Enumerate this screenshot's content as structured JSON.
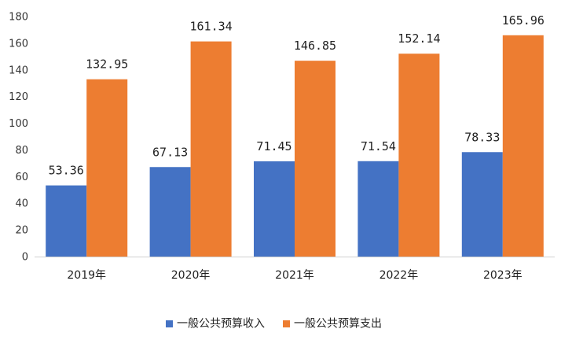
{
  "chart_data": {
    "type": "bar",
    "title": "",
    "xlabel": "",
    "ylabel": "",
    "categories": [
      "2019年",
      "2020年",
      "2021年",
      "2022年",
      "2023年"
    ],
    "series": [
      {
        "name": "一般公共预算收入",
        "color": "#4472C4",
        "values": [
          53.36,
          67.13,
          71.45,
          71.54,
          78.33
        ],
        "labels": [
          "53.36",
          "67.13",
          "71.45",
          "71.54",
          "78.33"
        ]
      },
      {
        "name": "一般公共预算支出",
        "color": "#ED7D31",
        "values": [
          132.95,
          161.34,
          146.85,
          152.14,
          165.96
        ],
        "labels": [
          "132.95",
          "161.34",
          "146.85",
          "152.14",
          "165.96"
        ]
      }
    ],
    "ylim": [
      0,
      180
    ],
    "yticks": [
      0,
      20,
      40,
      60,
      80,
      100,
      120,
      140,
      160,
      180
    ],
    "grid": false,
    "legend_position": "bottom"
  }
}
